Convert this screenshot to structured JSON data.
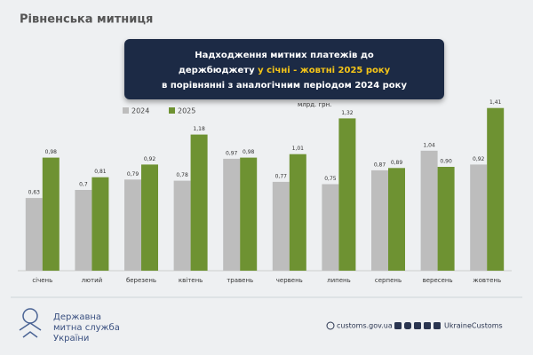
{
  "header": "Рівненська митниця",
  "chart_data": {
    "type": "bar",
    "title_line1": "Надходження митних платежів до",
    "title_line2": "держбюджету",
    "title_highlight": "у січні - жовтні 2025 року",
    "title_line3": "в порівнянні з аналогічним періодом 2024 року",
    "unit": "млрд. грн.",
    "categories": [
      "січень",
      "лютий",
      "березень",
      "квітень",
      "травень",
      "червень",
      "липень",
      "серпень",
      "вересень",
      "жовтень"
    ],
    "series": [
      {
        "name": "2024",
        "color": "#bdbdbd",
        "values": [
          0.63,
          0.7,
          0.79,
          0.78,
          0.97,
          0.77,
          0.75,
          0.87,
          1.04,
          0.92
        ],
        "value_labels": [
          "0,63",
          "0,7",
          "0,79",
          "0,78",
          "0,97",
          "0,77",
          "0,75",
          "0,87",
          "1,04",
          "0,92"
        ]
      },
      {
        "name": "2025",
        "color": "#6e9232",
        "values": [
          0.98,
          0.81,
          0.92,
          1.18,
          0.98,
          1.01,
          1.32,
          0.89,
          0.9,
          1.41
        ],
        "value_labels": [
          "0,98",
          "0,81",
          "0,92",
          "1,18",
          "0,98",
          "1,01",
          "1,32",
          "0,89",
          "0,90",
          "1,41"
        ]
      }
    ],
    "ylim": [
      0,
      1.5
    ]
  },
  "footer": {
    "org_line1": "Державна",
    "org_line2": "митна служба",
    "org_line3": "України",
    "site": "customs.gov.ua",
    "handle": "UkraineCustoms"
  }
}
